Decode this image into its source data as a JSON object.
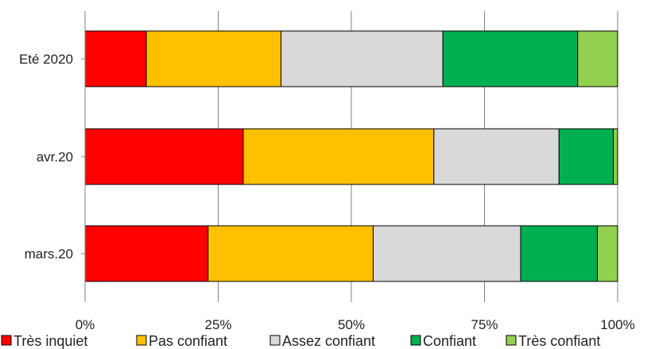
{
  "chart_data": {
    "type": "bar",
    "orientation": "horizontal",
    "stacked": true,
    "percent": true,
    "title": "",
    "xlabel": "",
    "ylabel": "",
    "categories": [
      "Eté 2020",
      "avr.20",
      "mars.20"
    ],
    "xticks": [
      "0%",
      "25%",
      "50%",
      "75%",
      "100%"
    ],
    "xlim": [
      0,
      100
    ],
    "grid": "vertical",
    "legend_position": "bottom",
    "series": [
      {
        "name": "Très inquiet",
        "color": "#ff0000",
        "values": [
          11.5,
          29.7,
          23.1
        ]
      },
      {
        "name": "Pas confiant",
        "color": "#ffc000",
        "values": [
          25.3,
          35.8,
          31.0
        ]
      },
      {
        "name": "Assez confiant",
        "color": "#d9d9d9",
        "values": [
          30.4,
          23.5,
          27.7
        ]
      },
      {
        "name": "Confiant",
        "color": "#00b050",
        "values": [
          25.3,
          10.2,
          14.4
        ]
      },
      {
        "name": "Très confiant",
        "color": "#92d050",
        "values": [
          7.5,
          0.8,
          3.8
        ]
      }
    ]
  }
}
